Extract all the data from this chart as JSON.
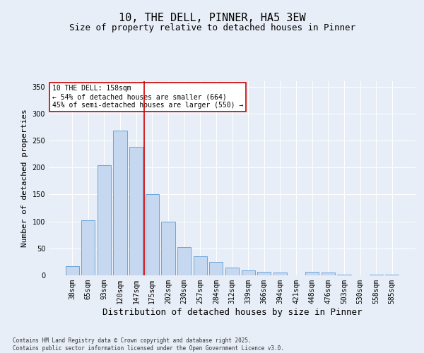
{
  "title_line1": "10, THE DELL, PINNER, HA5 3EW",
  "title_line2": "Size of property relative to detached houses in Pinner",
  "xlabel": "Distribution of detached houses by size in Pinner",
  "ylabel": "Number of detached properties",
  "categories": [
    "38sqm",
    "65sqm",
    "93sqm",
    "120sqm",
    "147sqm",
    "175sqm",
    "202sqm",
    "230sqm",
    "257sqm",
    "284sqm",
    "312sqm",
    "339sqm",
    "366sqm",
    "394sqm",
    "421sqm",
    "448sqm",
    "476sqm",
    "503sqm",
    "530sqm",
    "558sqm",
    "585sqm"
  ],
  "values": [
    17,
    102,
    204,
    269,
    238,
    151,
    100,
    52,
    35,
    25,
    14,
    9,
    6,
    5,
    0,
    6,
    5,
    1,
    0,
    1,
    1
  ],
  "bar_color": "#c5d8f0",
  "bar_edge_color": "#5b9bd5",
  "vline_x": 4.5,
  "vline_color": "#cc0000",
  "annotation_text": "10 THE DELL: 158sqm\n← 54% of detached houses are smaller (664)\n45% of semi-detached houses are larger (550) →",
  "annotation_box_color": "#ffffff",
  "annotation_border_color": "#cc0000",
  "ylim": [
    0,
    360
  ],
  "yticks": [
    0,
    50,
    100,
    150,
    200,
    250,
    300,
    350
  ],
  "bg_color": "#e8eef7",
  "plot_bg_color": "#e8eef7",
  "footer_text": "Contains HM Land Registry data © Crown copyright and database right 2025.\nContains public sector information licensed under the Open Government Licence v3.0.",
  "title_fontsize": 11,
  "subtitle_fontsize": 9,
  "axis_label_fontsize": 8,
  "tick_fontsize": 7,
  "annotation_fontsize": 7,
  "footer_fontsize": 5.5
}
